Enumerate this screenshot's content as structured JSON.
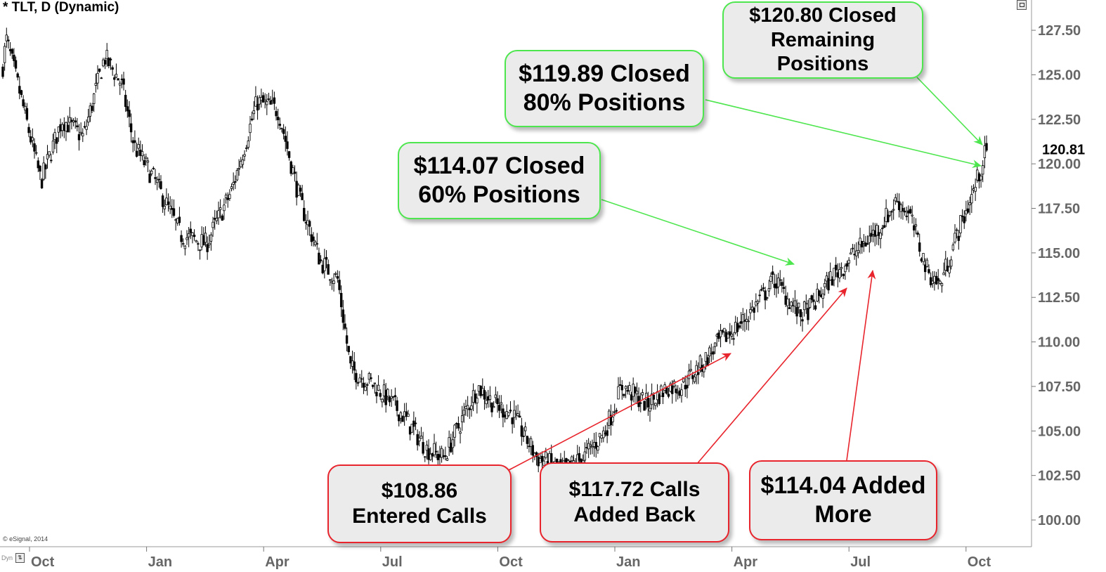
{
  "header": {
    "title": "* TLT, D (Dynamic)",
    "copyright": "© eSignal, 2014",
    "dyn_label": "Dyn"
  },
  "colors": {
    "green_callout_border": "#4ee64e",
    "red_callout_border": "#e8242c",
    "callout_fill": "#ebebeb",
    "candle": "#000000",
    "background": "#ffffff"
  },
  "annotations": {
    "closed_remaining": "$120.80 Closed\nRemaining\nPositions",
    "closed_80": "$119.89 Closed\n80% Positions",
    "closed_60": "$114.07 Closed\n60% Positions",
    "entered_calls": "$108.86\nEntered Calls",
    "added_back": "$117.72 Calls\nAdded Back",
    "added_more": "$114.04 Added\nMore"
  },
  "chart_data": {
    "type": "candlestick",
    "symbol": "TLT",
    "interval": "D",
    "last_price_label": "120.81",
    "ylim": [
      98.5,
      129.2
    ],
    "y_ticks": [
      100.0,
      102.5,
      105.0,
      107.5,
      110.0,
      112.5,
      115.0,
      117.5,
      120.0,
      122.5,
      125.0,
      127.5
    ],
    "y_tick_labels": [
      "100.00",
      "102.50",
      "105.00",
      "107.50",
      "110.00",
      "112.50",
      "115.00",
      "117.50",
      "120.00",
      "122.50",
      "125.00",
      "127.50"
    ],
    "x_ticks": [
      "Oct",
      "Jan",
      "Apr",
      "Jul",
      "Oct",
      "Jan",
      "Apr",
      "Jul",
      "Oct"
    ],
    "price_path": [
      {
        "t": 0,
        "p": 125.5
      },
      {
        "t": 0.04,
        "p": 127.0
      },
      {
        "t": 0.2,
        "p": 124.0
      },
      {
        "t": 0.45,
        "p": 119.0
      },
      {
        "t": 0.7,
        "p": 122.5
      },
      {
        "t": 0.95,
        "p": 121.5
      },
      {
        "t": 1.2,
        "p": 126.0
      },
      {
        "t": 1.4,
        "p": 124.5
      },
      {
        "t": 1.55,
        "p": 121.0
      },
      {
        "t": 1.8,
        "p": 119.0
      },
      {
        "t": 2.1,
        "p": 116.0
      },
      {
        "t": 2.4,
        "p": 115.5
      },
      {
        "t": 2.7,
        "p": 118.5
      },
      {
        "t": 3.0,
        "p": 123.5
      },
      {
        "t": 3.25,
        "p": 123.0
      },
      {
        "t": 3.5,
        "p": 118.0
      },
      {
        "t": 3.75,
        "p": 114.5
      },
      {
        "t": 3.95,
        "p": 113.5
      },
      {
        "t": 4.1,
        "p": 108.5
      },
      {
        "t": 4.4,
        "p": 107.5
      },
      {
        "t": 4.7,
        "p": 106.0
      },
      {
        "t": 5.0,
        "p": 104.0
      },
      {
        "t": 5.2,
        "p": 103.5
      },
      {
        "t": 5.4,
        "p": 105.5
      },
      {
        "t": 5.6,
        "p": 107.5
      },
      {
        "t": 5.8,
        "p": 106.5
      },
      {
        "t": 6.0,
        "p": 106.0
      },
      {
        "t": 6.3,
        "p": 103.5
      },
      {
        "t": 6.6,
        "p": 102.8
      },
      {
        "t": 6.85,
        "p": 103.5
      },
      {
        "t": 7.1,
        "p": 105.0
      },
      {
        "t": 7.3,
        "p": 107.5
      },
      {
        "t": 7.6,
        "p": 106.5
      },
      {
        "t": 7.85,
        "p": 107.5
      },
      {
        "t": 8.0,
        "p": 107.5
      },
      {
        "t": 8.2,
        "p": 108.5
      },
      {
        "t": 8.45,
        "p": 110.0
      },
      {
        "t": 8.7,
        "p": 111.0
      },
      {
        "t": 8.95,
        "p": 112.5
      },
      {
        "t": 9.1,
        "p": 113.5
      },
      {
        "t": 9.25,
        "p": 112.5
      },
      {
        "t": 9.4,
        "p": 111.5
      },
      {
        "t": 9.55,
        "p": 112.0
      },
      {
        "t": 9.75,
        "p": 113.5
      },
      {
        "t": 9.95,
        "p": 114.5
      },
      {
        "t": 10.15,
        "p": 115.5
      },
      {
        "t": 10.35,
        "p": 116.5
      },
      {
        "t": 10.55,
        "p": 118.0
      },
      {
        "t": 10.7,
        "p": 117.0
      },
      {
        "t": 10.9,
        "p": 114.0
      },
      {
        "t": 11.05,
        "p": 113.2
      },
      {
        "t": 11.25,
        "p": 116.0
      },
      {
        "t": 11.45,
        "p": 118.5
      },
      {
        "t": 11.6,
        "p": 120.8
      }
    ]
  }
}
